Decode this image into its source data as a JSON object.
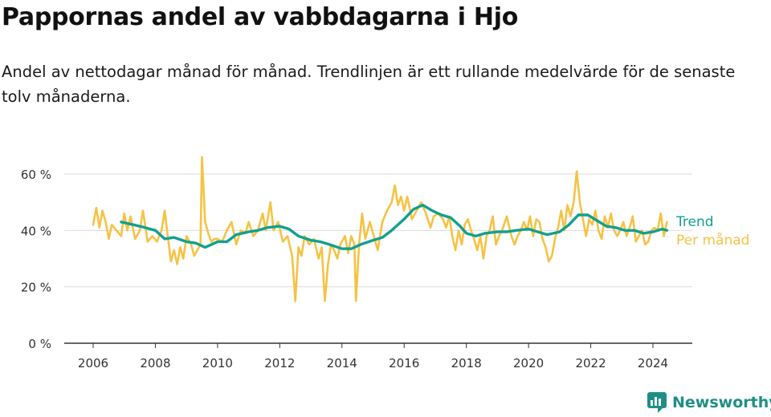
{
  "header": {
    "title": "Pappornas andel av vabbdagarna i Hjo",
    "subtitle": "Andel av nettodagar månad för månad. Trendlinjen är ett rullande medelvärde för de senaste tolv månaderna."
  },
  "brand": {
    "name": "Newsworthy",
    "icon": "newsworthy-logo-icon",
    "color": "#1f8f86"
  },
  "chart_data": {
    "type": "line",
    "title": "",
    "xlabel": "",
    "ylabel": "",
    "xlim": [
      2005.5,
      2024.8
    ],
    "ylim": [
      0,
      70
    ],
    "grid": true,
    "x_ticks": [
      2006,
      2008,
      2010,
      2012,
      2014,
      2016,
      2018,
      2020,
      2022,
      2024
    ],
    "x_tick_labels": [
      "2006",
      "2008",
      "2010",
      "2012",
      "2014",
      "2016",
      "2018",
      "2020",
      "2022",
      "2024"
    ],
    "y_ticks": [
      0,
      20,
      40,
      60
    ],
    "y_tick_labels": [
      "0 %",
      "20 %",
      "40 %",
      "60 %"
    ],
    "legend_placement": "right, inline at line ends",
    "series": [
      {
        "name": "Trend",
        "color": "#12a08e",
        "points": [
          [
            2006.9,
            43
          ],
          [
            2007.3,
            42
          ],
          [
            2007.6,
            41.2
          ],
          [
            2008.0,
            40
          ],
          [
            2008.3,
            37
          ],
          [
            2008.6,
            37.5
          ],
          [
            2009.0,
            36
          ],
          [
            2009.3,
            35.5
          ],
          [
            2009.6,
            34
          ],
          [
            2010.0,
            36
          ],
          [
            2010.3,
            36
          ],
          [
            2010.6,
            38.5
          ],
          [
            2011.0,
            39.5
          ],
          [
            2011.3,
            40
          ],
          [
            2011.6,
            41
          ],
          [
            2012.0,
            41.5
          ],
          [
            2012.3,
            40.5
          ],
          [
            2012.6,
            38
          ],
          [
            2013.0,
            36.5
          ],
          [
            2013.3,
            36
          ],
          [
            2013.6,
            35
          ],
          [
            2014.0,
            33.5
          ],
          [
            2014.3,
            33.5
          ],
          [
            2014.6,
            35
          ],
          [
            2015.0,
            36.5
          ],
          [
            2015.3,
            37.5
          ],
          [
            2015.6,
            40
          ],
          [
            2016.0,
            44
          ],
          [
            2016.3,
            47.5
          ],
          [
            2016.6,
            49
          ],
          [
            2016.9,
            47
          ],
          [
            2017.2,
            45.5
          ],
          [
            2017.5,
            44.5
          ],
          [
            2017.8,
            41.5
          ],
          [
            2018.0,
            39
          ],
          [
            2018.3,
            38
          ],
          [
            2018.6,
            39
          ],
          [
            2019.0,
            39.5
          ],
          [
            2019.3,
            39.5
          ],
          [
            2019.6,
            40
          ],
          [
            2020.0,
            40.5
          ],
          [
            2020.3,
            39.5
          ],
          [
            2020.6,
            38.5
          ],
          [
            2021.0,
            39.5
          ],
          [
            2021.3,
            42
          ],
          [
            2021.6,
            45.5
          ],
          [
            2021.9,
            45.5
          ],
          [
            2022.2,
            43.5
          ],
          [
            2022.5,
            41.5
          ],
          [
            2022.8,
            41
          ],
          [
            2023.1,
            40
          ],
          [
            2023.4,
            40
          ],
          [
            2023.7,
            39
          ],
          [
            2024.0,
            39.5
          ],
          [
            2024.3,
            40.5
          ],
          [
            2024.45,
            40
          ]
        ]
      },
      {
        "name": "Per månad",
        "color": "#f6c244",
        "points": [
          [
            2006.0,
            42
          ],
          [
            2006.1,
            48
          ],
          [
            2006.2,
            41
          ],
          [
            2006.3,
            47
          ],
          [
            2006.4,
            43
          ],
          [
            2006.5,
            37
          ],
          [
            2006.6,
            42
          ],
          [
            2006.75,
            40
          ],
          [
            2006.9,
            38
          ],
          [
            2007.0,
            46
          ],
          [
            2007.1,
            40
          ],
          [
            2007.2,
            45
          ],
          [
            2007.35,
            37
          ],
          [
            2007.5,
            40
          ],
          [
            2007.6,
            47
          ],
          [
            2007.75,
            36
          ],
          [
            2007.9,
            38
          ],
          [
            2008.05,
            36
          ],
          [
            2008.2,
            40
          ],
          [
            2008.3,
            47
          ],
          [
            2008.4,
            38
          ],
          [
            2008.5,
            29
          ],
          [
            2008.6,
            33
          ],
          [
            2008.7,
            28
          ],
          [
            2008.8,
            34
          ],
          [
            2008.9,
            30
          ],
          [
            2009.0,
            38
          ],
          [
            2009.15,
            35
          ],
          [
            2009.25,
            31
          ],
          [
            2009.35,
            33
          ],
          [
            2009.45,
            35
          ],
          [
            2009.5,
            66
          ],
          [
            2009.6,
            43
          ],
          [
            2009.7,
            39
          ],
          [
            2009.8,
            36
          ],
          [
            2009.9,
            37
          ],
          [
            2010.0,
            37
          ],
          [
            2010.15,
            36
          ],
          [
            2010.3,
            40
          ],
          [
            2010.45,
            43
          ],
          [
            2010.6,
            35
          ],
          [
            2010.75,
            40
          ],
          [
            2010.9,
            39
          ],
          [
            2011.0,
            43
          ],
          [
            2011.15,
            38
          ],
          [
            2011.3,
            40
          ],
          [
            2011.45,
            46
          ],
          [
            2011.55,
            40
          ],
          [
            2011.7,
            50
          ],
          [
            2011.8,
            40
          ],
          [
            2011.95,
            43
          ],
          [
            2012.1,
            36
          ],
          [
            2012.25,
            38
          ],
          [
            2012.4,
            31
          ],
          [
            2012.5,
            15
          ],
          [
            2012.6,
            34
          ],
          [
            2012.7,
            31
          ],
          [
            2012.8,
            38
          ],
          [
            2012.95,
            35
          ],
          [
            2013.1,
            37
          ],
          [
            2013.25,
            30
          ],
          [
            2013.35,
            34
          ],
          [
            2013.45,
            15
          ],
          [
            2013.55,
            28
          ],
          [
            2013.65,
            35
          ],
          [
            2013.75,
            33
          ],
          [
            2013.85,
            30
          ],
          [
            2013.95,
            35
          ],
          [
            2014.1,
            38
          ],
          [
            2014.2,
            32
          ],
          [
            2014.3,
            38
          ],
          [
            2014.4,
            35
          ],
          [
            2014.45,
            15
          ],
          [
            2014.55,
            35
          ],
          [
            2014.65,
            46
          ],
          [
            2014.75,
            37
          ],
          [
            2014.9,
            43
          ],
          [
            2015.05,
            37
          ],
          [
            2015.15,
            33
          ],
          [
            2015.3,
            43
          ],
          [
            2015.45,
            47
          ],
          [
            2015.6,
            50
          ],
          [
            2015.7,
            56
          ],
          [
            2015.8,
            49
          ],
          [
            2015.9,
            52
          ],
          [
            2016.0,
            47
          ],
          [
            2016.1,
            52
          ],
          [
            2016.25,
            44
          ],
          [
            2016.4,
            47
          ],
          [
            2016.55,
            50
          ],
          [
            2016.7,
            46
          ],
          [
            2016.85,
            41
          ],
          [
            2016.95,
            45
          ],
          [
            2017.1,
            46
          ],
          [
            2017.25,
            44
          ],
          [
            2017.35,
            41
          ],
          [
            2017.45,
            45
          ],
          [
            2017.55,
            38
          ],
          [
            2017.65,
            33
          ],
          [
            2017.75,
            40
          ],
          [
            2017.85,
            35
          ],
          [
            2017.95,
            42
          ],
          [
            2018.05,
            44
          ],
          [
            2018.15,
            40
          ],
          [
            2018.25,
            37
          ],
          [
            2018.35,
            33
          ],
          [
            2018.45,
            38
          ],
          [
            2018.55,
            30
          ],
          [
            2018.65,
            38
          ],
          [
            2018.75,
            40
          ],
          [
            2018.85,
            45
          ],
          [
            2018.95,
            35
          ],
          [
            2019.05,
            38
          ],
          [
            2019.15,
            40
          ],
          [
            2019.3,
            45
          ],
          [
            2019.45,
            38
          ],
          [
            2019.55,
            35
          ],
          [
            2019.65,
            38
          ],
          [
            2019.75,
            40
          ],
          [
            2019.85,
            43
          ],
          [
            2019.95,
            40
          ],
          [
            2020.05,
            45
          ],
          [
            2020.15,
            38
          ],
          [
            2020.25,
            44
          ],
          [
            2020.35,
            43
          ],
          [
            2020.45,
            37
          ],
          [
            2020.55,
            34
          ],
          [
            2020.65,
            29
          ],
          [
            2020.75,
            31
          ],
          [
            2020.85,
            37
          ],
          [
            2020.95,
            41
          ],
          [
            2021.05,
            47
          ],
          [
            2021.15,
            40
          ],
          [
            2021.25,
            49
          ],
          [
            2021.35,
            45
          ],
          [
            2021.45,
            50
          ],
          [
            2021.55,
            61
          ],
          [
            2021.65,
            50
          ],
          [
            2021.75,
            44
          ],
          [
            2021.85,
            38
          ],
          [
            2021.95,
            44
          ],
          [
            2022.05,
            42
          ],
          [
            2022.15,
            47
          ],
          [
            2022.25,
            40
          ],
          [
            2022.35,
            37
          ],
          [
            2022.45,
            45
          ],
          [
            2022.55,
            41
          ],
          [
            2022.65,
            46
          ],
          [
            2022.75,
            40
          ],
          [
            2022.85,
            38
          ],
          [
            2022.95,
            40
          ],
          [
            2023.05,
            43
          ],
          [
            2023.15,
            38
          ],
          [
            2023.25,
            41
          ],
          [
            2023.35,
            45
          ],
          [
            2023.45,
            36
          ],
          [
            2023.55,
            38
          ],
          [
            2023.65,
            40
          ],
          [
            2023.75,
            35
          ],
          [
            2023.85,
            36
          ],
          [
            2023.95,
            40
          ],
          [
            2024.05,
            41
          ],
          [
            2024.15,
            40
          ],
          [
            2024.25,
            46
          ],
          [
            2024.35,
            38
          ],
          [
            2024.45,
            43
          ]
        ]
      }
    ]
  }
}
